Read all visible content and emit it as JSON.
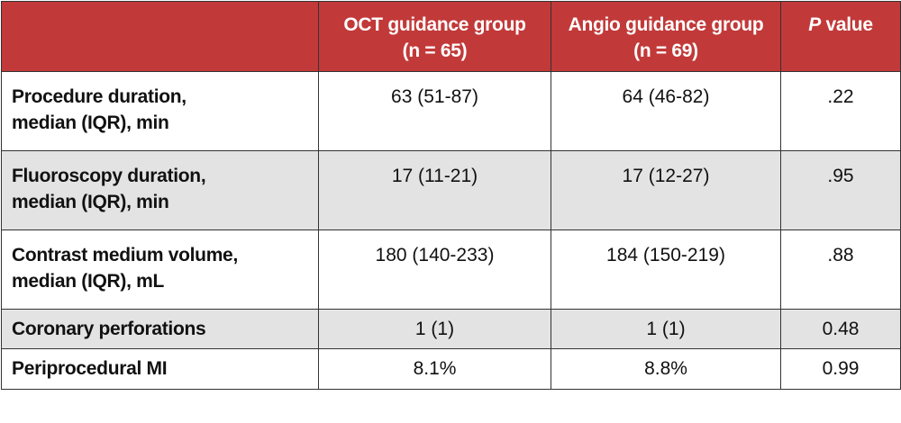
{
  "table": {
    "headers": {
      "col0": "",
      "col1_line1": "OCT guidance group",
      "col1_line2": "(n = 65)",
      "col2_line1": "Angio guidance group",
      "col2_line2": "(n = 69)",
      "col3_italic": "P",
      "col3_rest": " value"
    },
    "rows": [
      {
        "label_line1": "Procedure duration,",
        "label_line2": "median (IQR), min",
        "oct": "63 (51-87)",
        "angio": "64 (46-82)",
        "p": ".22"
      },
      {
        "label_line1": "Fluoroscopy duration,",
        "label_line2": "median (IQR), min",
        "oct": "17 (11-21)",
        "angio": "17 (12-27)",
        "p": ".95"
      },
      {
        "label_line1": "Contrast medium volume,",
        "label_line2": "median (IQR), mL",
        "oct": "180 (140-233)",
        "angio": "184 (150-219)",
        "p": ".88"
      },
      {
        "label_line1": "Coronary perforations",
        "label_line2": "",
        "oct": "1 (1)",
        "angio": "1 (1)",
        "p": "0.48"
      },
      {
        "label_line1": "Periprocedural MI",
        "label_line2": "",
        "oct": "8.1%",
        "angio": "8.8%",
        "p": "0.99"
      }
    ],
    "colors": {
      "header_bg": "#c23939",
      "header_text": "#ffffff",
      "shaded_row_bg": "#e3e3e3",
      "border": "#333333"
    }
  }
}
